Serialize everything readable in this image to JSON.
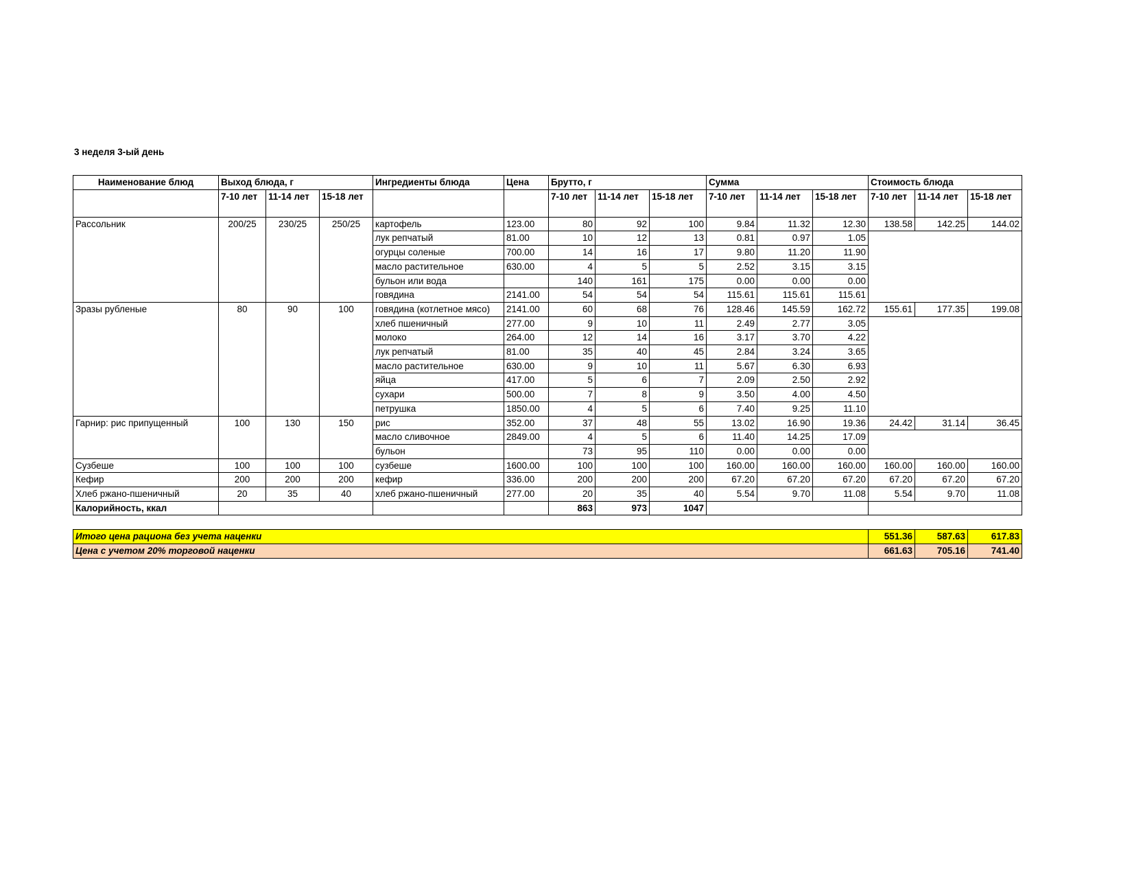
{
  "title": "3 неделя 3-ый день",
  "header": {
    "dish": "Наименование блюд",
    "yield": "Выход блюда, г",
    "ingredients": "Ингредиенты блюда",
    "price": "Цена",
    "gross": "Брутто, г",
    "sum": "Сумма",
    "cost": "Стоимость блюда",
    "ages": [
      "7-10 лет",
      "11-14 лет",
      "15-18 лет"
    ]
  },
  "dishes": [
    {
      "name": "Рассольник",
      "yield": [
        "200/25",
        "230/25",
        "250/25"
      ],
      "cost": [
        "138.58",
        "142.25",
        "144.02"
      ],
      "ingredients": [
        {
          "name": "картофель",
          "price": "123.00",
          "gross": [
            "80",
            "92",
            "100"
          ],
          "sum": [
            "9.84",
            "11.32",
            "12.30"
          ]
        },
        {
          "name": "лук репчатый",
          "price": "81.00",
          "gross": [
            "10",
            "12",
            "13"
          ],
          "sum": [
            "0.81",
            "0.97",
            "1.05"
          ]
        },
        {
          "name": "огурцы соленые",
          "price": "700.00",
          "gross": [
            "14",
            "16",
            "17"
          ],
          "sum": [
            "9.80",
            "11.20",
            "11.90"
          ]
        },
        {
          "name": "масло растительное",
          "price": "630.00",
          "gross": [
            "4",
            "5",
            "5"
          ],
          "sum": [
            "2.52",
            "3.15",
            "3.15"
          ]
        },
        {
          "name": "бульон или вода",
          "price": null,
          "gross": [
            "140",
            "161",
            "175"
          ],
          "sum": [
            "0.00",
            "0.00",
            "0.00"
          ]
        },
        {
          "name": "говядина",
          "price": "2141.00",
          "gross": [
            "54",
            "54",
            "54"
          ],
          "sum": [
            "115.61",
            "115.61",
            "115.61"
          ]
        }
      ]
    },
    {
      "name": "Зразы рубленые",
      "yield": [
        "80",
        "90",
        "100"
      ],
      "cost": [
        "155.61",
        "177.35",
        "199.08"
      ],
      "ingredients": [
        {
          "name": "говядина (котлетное мясо)",
          "price": "2141.00",
          "gross": [
            "60",
            "68",
            "76"
          ],
          "sum": [
            "128.46",
            "145.59",
            "162.72"
          ]
        },
        {
          "name": "хлеб пшеничный",
          "price": "277.00",
          "gross": [
            "9",
            "10",
            "11"
          ],
          "sum": [
            "2.49",
            "2.77",
            "3.05"
          ]
        },
        {
          "name": "молоко",
          "price": "264.00",
          "gross": [
            "12",
            "14",
            "16"
          ],
          "sum": [
            "3.17",
            "3.70",
            "4.22"
          ]
        },
        {
          "name": "лук репчатый",
          "price": "81.00",
          "gross": [
            "35",
            "40",
            "45"
          ],
          "sum": [
            "2.84",
            "3.24",
            "3.65"
          ]
        },
        {
          "name": "масло растительное",
          "price": "630.00",
          "gross": [
            "9",
            "10",
            "11"
          ],
          "sum": [
            "5.67",
            "6.30",
            "6.93"
          ]
        },
        {
          "name": "яйца",
          "price": "417.00",
          "gross": [
            "5",
            "6",
            "7"
          ],
          "sum": [
            "2.09",
            "2.50",
            "2.92"
          ]
        },
        {
          "name": "сухари",
          "price": "500.00",
          "gross": [
            "7",
            "8",
            "9"
          ],
          "sum": [
            "3.50",
            "4.00",
            "4.50"
          ]
        },
        {
          "name": "петрушка",
          "price": "1850.00",
          "gross": [
            "4",
            "5",
            "6"
          ],
          "sum": [
            "7.40",
            "9.25",
            "11.10"
          ]
        }
      ]
    },
    {
      "name": "Гарнир: рис припущенный",
      "yield": [
        "100",
        "130",
        "150"
      ],
      "cost": [
        "24.42",
        "31.14",
        "36.45"
      ],
      "ingredients": [
        {
          "name": "рис",
          "price": "352.00",
          "gross": [
            "37",
            "48",
            "55"
          ],
          "sum": [
            "13.02",
            "16.90",
            "19.36"
          ]
        },
        {
          "name": "масло сливочное",
          "price": "2849.00",
          "gross": [
            "4",
            "5",
            "6"
          ],
          "sum": [
            "11.40",
            "14.25",
            "17.09"
          ]
        },
        {
          "name": "бульон",
          "price": null,
          "gross": [
            "73",
            "95",
            "110"
          ],
          "sum": [
            "0.00",
            "0.00",
            "0.00"
          ]
        }
      ]
    },
    {
      "name": "Сузбеше",
      "yield": [
        "100",
        "100",
        "100"
      ],
      "cost": [
        "160.00",
        "160.00",
        "160.00"
      ],
      "ingredients": [
        {
          "name": "сузбеше",
          "price": "1600.00",
          "gross": [
            "100",
            "100",
            "100"
          ],
          "sum": [
            "160.00",
            "160.00",
            "160.00"
          ]
        }
      ]
    },
    {
      "name": "Кефир",
      "yield": [
        "200",
        "200",
        "200"
      ],
      "cost": [
        "67.20",
        "67.20",
        "67.20"
      ],
      "ingredients": [
        {
          "name": "кефир",
          "price": "336.00",
          "gross": [
            "200",
            "200",
            "200"
          ],
          "sum": [
            "67.20",
            "67.20",
            "67.20"
          ]
        }
      ]
    },
    {
      "name": "Хлеб ржано-пшеничный",
      "yield": [
        "20",
        "35",
        "40"
      ],
      "cost": [
        "5.54",
        "9.70",
        "11.08"
      ],
      "ingredients": [
        {
          "name": "хлеб ржано-пшеничный",
          "price": "277.00",
          "gross": [
            "20",
            "35",
            "40"
          ],
          "sum": [
            "5.54",
            "9.70",
            "11.08"
          ]
        }
      ]
    }
  ],
  "calories": {
    "label": "Калорийность, ккал",
    "values": [
      "863",
      "973",
      "1047"
    ]
  },
  "totals": [
    {
      "label": "Итого цена рациона без учета наценки",
      "values": [
        "551.36",
        "587.63",
        "617.83"
      ]
    },
    {
      "label": "Цена с учетом 20% торговой наценки",
      "values": [
        "661.63",
        "705.16",
        "741.40"
      ]
    }
  ]
}
